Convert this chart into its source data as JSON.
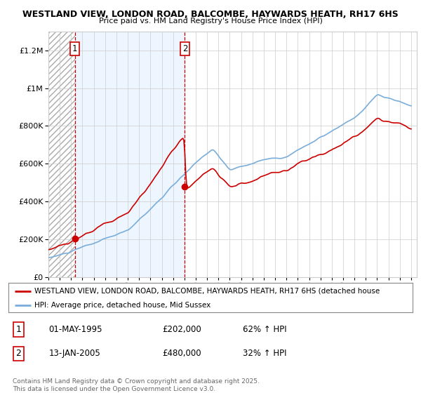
{
  "title": "WESTLAND VIEW, LONDON ROAD, BALCOMBE, HAYWARDS HEATH, RH17 6HS",
  "subtitle": "Price paid vs. HM Land Registry's House Price Index (HPI)",
  "ylim": [
    0,
    1300000
  ],
  "yticks": [
    0,
    200000,
    400000,
    600000,
    800000,
    1000000,
    1200000
  ],
  "ytick_labels": [
    "£0",
    "£200K",
    "£400K",
    "£600K",
    "£800K",
    "£1M",
    "£1.2M"
  ],
  "xstart_year": 1993,
  "xend_year": 2025,
  "sale1_date": 1995.33,
  "sale1_price": 202000,
  "sale1_label": "1",
  "sale2_date": 2005.04,
  "sale2_price": 480000,
  "sale2_label": "2",
  "line_color_property": "#cc0000",
  "line_color_hpi": "#7aadd9",
  "legend_label_property": "WESTLAND VIEW, LONDON ROAD, BALCOMBE, HAYWARDS HEATH, RH17 6HS (detached house",
  "legend_label_hpi": "HPI: Average price, detached house, Mid Sussex",
  "table_row1": [
    "1",
    "01-MAY-1995",
    "£202,000",
    "62% ↑ HPI"
  ],
  "table_row2": [
    "2",
    "13-JAN-2005",
    "£480,000",
    "32% ↑ HPI"
  ],
  "footnote": "Contains HM Land Registry data © Crown copyright and database right 2025.\nThis data is licensed under the Open Government Licence v3.0.",
  "bg_color": "#ffffff",
  "shade_color": "#ddeeff",
  "grid_color": "#cccccc"
}
